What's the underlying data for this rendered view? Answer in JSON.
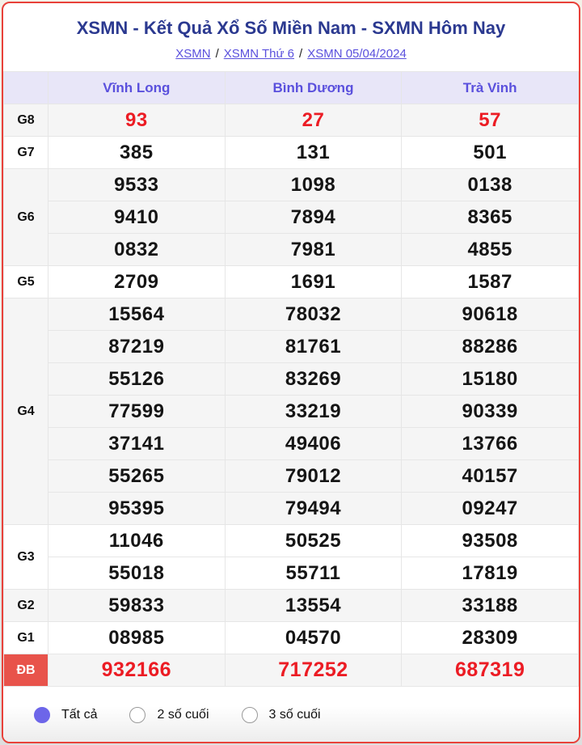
{
  "header": {
    "title": "XSMN - Kết Quả Xổ Số Miền Nam - SXMN Hôm Nay",
    "breadcrumb": {
      "separator": "/",
      "items": [
        {
          "key": "xsmn",
          "label": "XSMN"
        },
        {
          "key": "xsmn-thu-6",
          "label": "XSMN Thứ 6"
        },
        {
          "key": "xsmn-date",
          "label": "XSMN 05/04/2024"
        }
      ]
    }
  },
  "table": {
    "province_headers": [
      "Vĩnh Long",
      "Bình Dương",
      "Trà Vinh"
    ],
    "prize_groups": [
      {
        "key": "g8",
        "label": "G8",
        "red": true,
        "shaded": true,
        "rows": [
          [
            "93",
            "27",
            "57"
          ]
        ]
      },
      {
        "key": "g7",
        "label": "G7",
        "red": false,
        "shaded": false,
        "rows": [
          [
            "385",
            "131",
            "501"
          ]
        ]
      },
      {
        "key": "g6",
        "label": "G6",
        "red": false,
        "shaded": true,
        "rows": [
          [
            "9533",
            "1098",
            "0138"
          ],
          [
            "9410",
            "7894",
            "8365"
          ],
          [
            "0832",
            "7981",
            "4855"
          ]
        ]
      },
      {
        "key": "g5",
        "label": "G5",
        "red": false,
        "shaded": false,
        "rows": [
          [
            "2709",
            "1691",
            "1587"
          ]
        ]
      },
      {
        "key": "g4",
        "label": "G4",
        "red": false,
        "shaded": true,
        "rows": [
          [
            "15564",
            "78032",
            "90618"
          ],
          [
            "87219",
            "81761",
            "88286"
          ],
          [
            "55126",
            "83269",
            "15180"
          ],
          [
            "77599",
            "33219",
            "90339"
          ],
          [
            "37141",
            "49406",
            "13766"
          ],
          [
            "55265",
            "79012",
            "40157"
          ],
          [
            "95395",
            "79494",
            "09247"
          ]
        ]
      },
      {
        "key": "g3",
        "label": "G3",
        "red": false,
        "shaded": false,
        "rows": [
          [
            "11046",
            "50525",
            "93508"
          ],
          [
            "55018",
            "55711",
            "17819"
          ]
        ]
      },
      {
        "key": "g2",
        "label": "G2",
        "red": false,
        "shaded": true,
        "rows": [
          [
            "59833",
            "13554",
            "33188"
          ]
        ]
      },
      {
        "key": "g1",
        "label": "G1",
        "red": false,
        "shaded": false,
        "rows": [
          [
            "08985",
            "04570",
            "28309"
          ]
        ]
      },
      {
        "key": "db",
        "label": "ĐB",
        "red": true,
        "shaded": true,
        "special": true,
        "rows": [
          [
            "932166",
            "717252",
            "687319"
          ]
        ]
      }
    ]
  },
  "footer": {
    "filter_options": [
      {
        "key": "all",
        "label": "Tất cả",
        "selected": true
      },
      {
        "key": "last2",
        "label": "2 số cuối",
        "selected": false
      },
      {
        "key": "last3",
        "label": "3 số cuối",
        "selected": false
      }
    ]
  },
  "colors": {
    "card_border": "#e8413a",
    "title_navy": "#2b3990",
    "link_purple": "#5a50dd",
    "header_bg": "#e8e6f8",
    "header_text": "#5a50dd",
    "row_shaded": "#f5f5f5",
    "cell_border": "#e6e6e6",
    "number_black": "#151515",
    "number_red": "#ec1c24",
    "db_label_bg": "#e8534b",
    "radio_selected": "#6d66e9"
  }
}
